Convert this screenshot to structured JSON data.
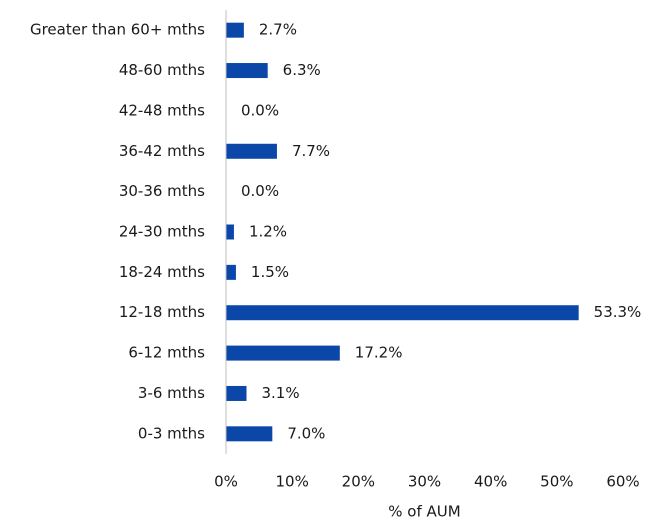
{
  "chart_data": {
    "type": "bar",
    "orientation": "horizontal",
    "categories": [
      "0-3 mths",
      "3-6 mths",
      "6-12 mths",
      "12-18 mths",
      "18-24 mths",
      "24-30 mths",
      "30-36 mths",
      "36-42 mths",
      "42-48 mths",
      "48-60 mths",
      "Greater than 60+ mths"
    ],
    "values": [
      7.0,
      3.1,
      17.2,
      53.3,
      1.5,
      1.2,
      0.0,
      7.7,
      0.0,
      6.3,
      2.7
    ],
    "data_labels": [
      "7.0%",
      "3.1%",
      "17.2%",
      "53.3%",
      "1.5%",
      "1.2%",
      "0.0%",
      "7.7%",
      "0.0%",
      "6.3%",
      "2.7%"
    ],
    "xlabel": "% of AUM",
    "ylabel": "",
    "title": "",
    "xlim": [
      0,
      60
    ],
    "xticks": [
      0,
      10,
      20,
      30,
      40,
      50,
      60
    ],
    "xtick_labels": [
      "0%",
      "10%",
      "20%",
      "30%",
      "40%",
      "50%",
      "60%"
    ],
    "grid": false,
    "legend": "none",
    "bar_color": "#0a47a9",
    "axis_color": "#bfbfbf",
    "text_color": "#1a1a1a"
  }
}
